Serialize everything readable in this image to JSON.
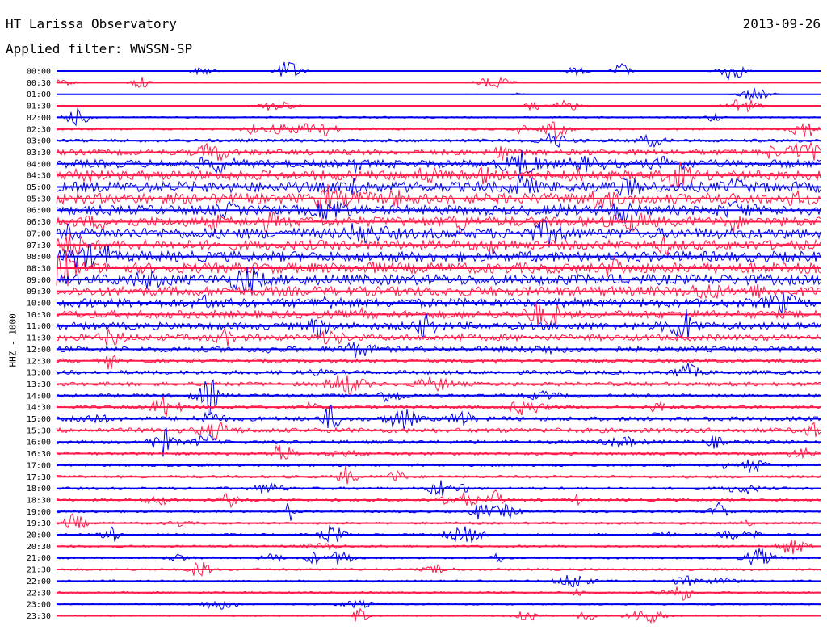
{
  "header": {
    "station": "HT Larissa Observatory",
    "date": "2013-09-26",
    "filter_label": "Applied filter: WWSSN-SP"
  },
  "chart_data": {
    "type": "line",
    "title": "HT Larissa Observatory",
    "ylabel": "HHZ - 1000",
    "row_labels": [
      "00:00",
      "00:30",
      "01:00",
      "01:30",
      "02:00",
      "02:30",
      "03:00",
      "03:30",
      "04:00",
      "04:30",
      "05:00",
      "05:30",
      "06:00",
      "06:30",
      "07:00",
      "07:30",
      "08:00",
      "08:30",
      "09:00",
      "09:30",
      "10:00",
      "10:30",
      "11:00",
      "11:30",
      "12:00",
      "12:30",
      "13:00",
      "13:30",
      "14:00",
      "14:30",
      "15:00",
      "15:30",
      "16:00",
      "16:30",
      "17:00",
      "17:30",
      "18:00",
      "18:30",
      "19:00",
      "19:30",
      "20:00",
      "20:30",
      "21:00",
      "21:30",
      "22:00",
      "22:30",
      "23:00",
      "23:30"
    ],
    "trace_colors": [
      "#0000ee",
      "#ff1a4a"
    ],
    "noise_level": [
      0.05,
      0.08,
      0.06,
      0.1,
      0.22,
      0.3,
      0.4,
      0.7,
      1.0,
      1.2,
      1.3,
      1.3,
      1.2,
      1.2,
      1.3,
      1.2,
      1.3,
      1.3,
      1.3,
      1.2,
      1.1,
      1.0,
      0.9,
      0.8,
      0.7,
      0.55,
      0.5,
      0.5,
      0.45,
      0.45,
      0.55,
      0.6,
      0.45,
      0.4,
      0.35,
      0.35,
      0.35,
      0.35,
      0.3,
      0.3,
      0.3,
      0.3,
      0.28,
      0.28,
      0.28,
      0.28,
      0.22,
      0.2
    ],
    "grid": false,
    "legend": "none"
  }
}
